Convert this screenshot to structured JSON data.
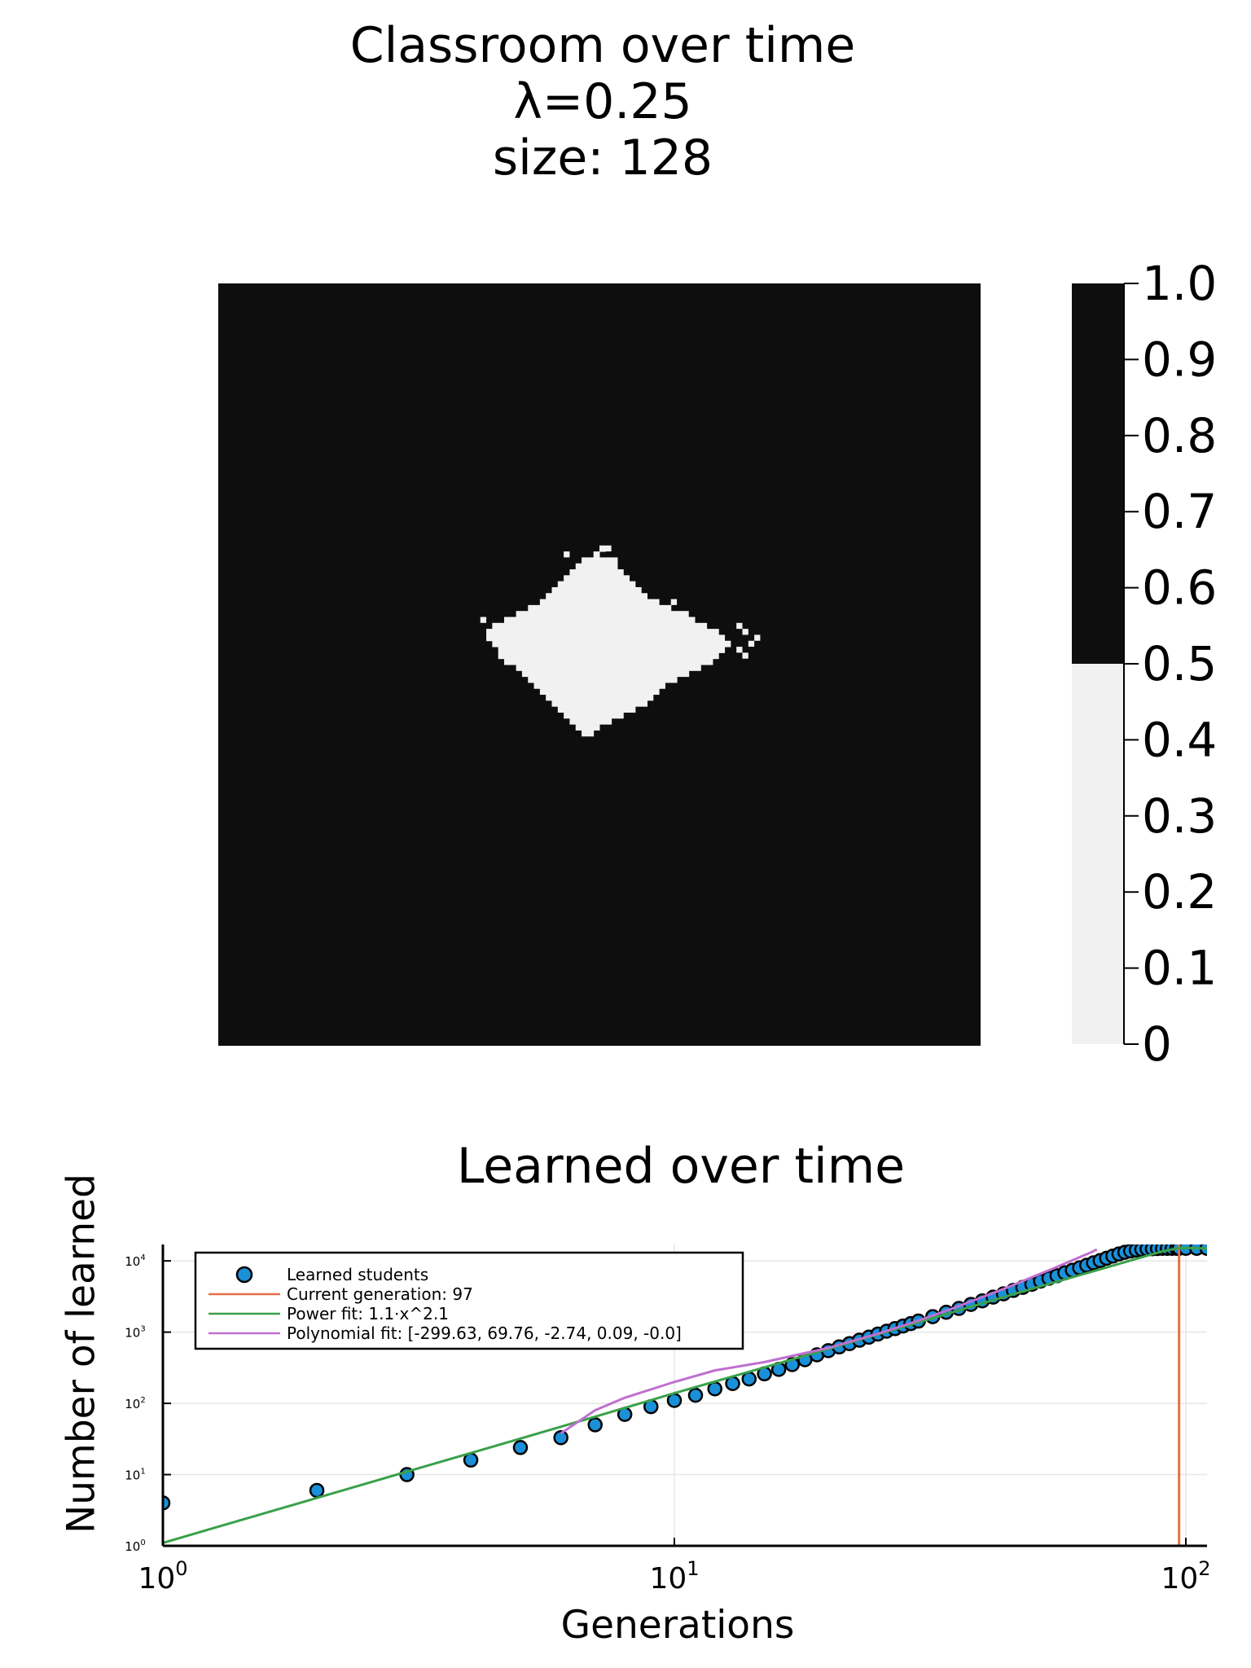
{
  "chart_data": [
    {
      "type": "heatmap",
      "title_lines": [
        "Classroom over time",
        "λ=0.25",
        "size: 128"
      ],
      "grid_size": 128,
      "colorbar": {
        "ticks": [
          "1.0",
          "0.9",
          "0.8",
          "0.7",
          "0.6",
          "0.5",
          "0.4",
          "0.3",
          "0.2",
          "0.1",
          "0"
        ],
        "range": [
          0,
          1
        ],
        "threshold": 0.5,
        "low_color": "#f1f1f1",
        "high_color": "#0e0e0e"
      },
      "background_value": 1,
      "patch_value": 0,
      "patch_rows": [
        [
          44,
          64,
          65
        ],
        [
          45,
          63,
          64
        ],
        [
          46,
          61,
          67
        ],
        [
          47,
          60,
          67
        ],
        [
          48,
          59,
          68
        ],
        [
          49,
          58,
          69
        ],
        [
          50,
          57,
          70
        ],
        [
          51,
          56,
          71
        ],
        [
          52,
          55,
          72
        ],
        [
          53,
          54,
          74
        ],
        [
          54,
          52,
          76
        ],
        [
          55,
          50,
          78
        ],
        [
          56,
          48,
          80
        ],
        [
          57,
          46,
          82
        ],
        [
          58,
          45,
          84
        ],
        [
          59,
          45,
          85
        ],
        [
          60,
          46,
          86
        ],
        [
          61,
          47,
          85
        ],
        [
          62,
          47,
          84
        ],
        [
          63,
          48,
          83
        ],
        [
          64,
          50,
          81
        ],
        [
          65,
          51,
          79
        ],
        [
          66,
          52,
          77
        ],
        [
          67,
          53,
          75
        ],
        [
          68,
          54,
          74
        ],
        [
          69,
          55,
          73
        ],
        [
          70,
          56,
          72
        ],
        [
          71,
          57,
          70
        ],
        [
          72,
          58,
          68
        ],
        [
          73,
          59,
          66
        ],
        [
          74,
          60,
          64
        ],
        [
          75,
          61,
          63
        ]
      ],
      "specks": [
        [
          44,
          65
        ],
        [
          45,
          58
        ],
        [
          53,
          76
        ],
        [
          55,
          78
        ],
        [
          56,
          44
        ],
        [
          57,
          87
        ],
        [
          58,
          88
        ],
        [
          59,
          90
        ],
        [
          60,
          89
        ],
        [
          61,
          87
        ],
        [
          62,
          88
        ]
      ]
    },
    {
      "type": "scatter",
      "title": "Learned over time",
      "xlabel": "Generations",
      "ylabel": "Number of learned",
      "xscale": "log10",
      "yscale": "log10",
      "xlim": [
        1,
        110
      ],
      "ylim": [
        1,
        17000
      ],
      "xticks": [
        1,
        10,
        100
      ],
      "yticks": [
        1,
        10,
        100,
        1000,
        10000
      ],
      "grid": true,
      "legend_position": "top-left",
      "series": [
        {
          "name": "Learned students",
          "kind": "markers",
          "color": "#1a90d9",
          "x": [
            1,
            2,
            3,
            4,
            5,
            6,
            7,
            8,
            9,
            10,
            11,
            12,
            13,
            14,
            15,
            16,
            17,
            18,
            19,
            20,
            21,
            22,
            23,
            24,
            25,
            26,
            27,
            28,
            29,
            30,
            32,
            34,
            36,
            38,
            40,
            42,
            44,
            46,
            48,
            50,
            52,
            54,
            56,
            58,
            60,
            62,
            64,
            66,
            68,
            70,
            72,
            74,
            76,
            78,
            80,
            82,
            84,
            86,
            88,
            90,
            92,
            94,
            96,
            97,
            100,
            105,
            110
          ],
          "y": [
            4,
            6,
            10,
            16,
            24,
            33,
            50,
            70,
            90,
            110,
            130,
            160,
            190,
            220,
            260,
            300,
            350,
            410,
            480,
            550,
            620,
            690,
            770,
            850,
            940,
            1030,
            1120,
            1220,
            1320,
            1430,
            1650,
            1900,
            2150,
            2450,
            2750,
            3100,
            3450,
            3850,
            4250,
            4700,
            5200,
            5700,
            6200,
            6800,
            7400,
            8000,
            8700,
            9400,
            10100,
            10900,
            11700,
            12500,
            13200,
            13800,
            14200,
            14500,
            14700,
            14800,
            14900,
            15000,
            15000,
            15000,
            15000,
            15000,
            15000,
            15000,
            15000
          ]
        },
        {
          "name": "Current generation: 97",
          "kind": "vline",
          "color": "#e26f46",
          "x": 97
        },
        {
          "name": "Power fit: 1.1⋅x^2.1",
          "kind": "line",
          "color": "#3aa04a",
          "x": [
            1,
            2,
            3,
            5,
            7,
            10,
            15,
            20,
            30,
            40,
            50,
            60,
            70,
            80,
            90,
            97,
            110
          ],
          "y": [
            1.1,
            4.7,
            11,
            32,
            65,
            139,
            320,
            580,
            1370,
            2530,
            4050,
            5900,
            8100,
            10700,
            13600,
            15200,
            15000
          ]
        },
        {
          "name": "Polynomial fit: [-299.63, 69.76, -2.74, 0.09, -0.0]",
          "kind": "line",
          "color": "#c06fd0",
          "x": [
            6,
            7,
            8,
            10,
            12,
            15,
            20,
            25,
            30,
            35,
            40,
            45,
            50,
            55,
            60,
            65,
            67
          ],
          "y": [
            38,
            80,
            120,
            200,
            290,
            380,
            600,
            950,
            1450,
            2150,
            3100,
            4300,
            5900,
            7800,
            10200,
            13000,
            14500
          ]
        }
      ]
    }
  ]
}
